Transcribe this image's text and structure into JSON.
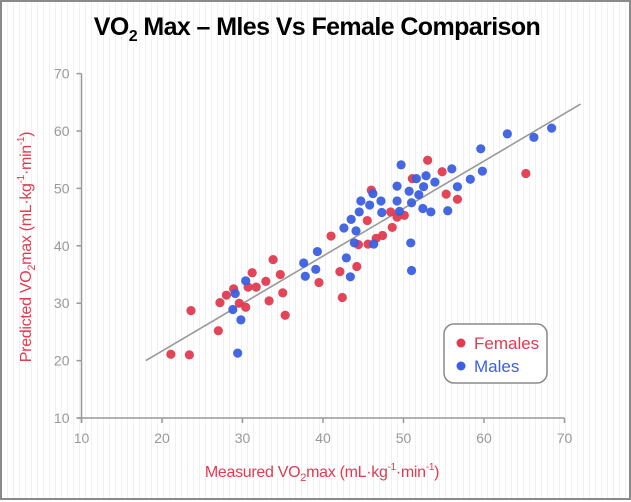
{
  "chart_data": {
    "type": "scatter",
    "title": {
      "prefix": "VO",
      "subscript": "2",
      "rest": " Max – Mles Vs Female Comparison"
    },
    "xlabel": {
      "prefix": "Measured VO",
      "subscript": "2",
      "middle": "max (mL·kg",
      "sup1": "-1",
      "middle2": "·min",
      "sup2": "-1",
      "suffix": ")"
    },
    "ylabel": {
      "prefix": "Predicted VO",
      "subscript": "2",
      "middle": "max (mL·kg",
      "sup1": "-1",
      "middle2": "·min",
      "sup2": "-1",
      "suffix": ")"
    },
    "xlim": [
      10,
      70
    ],
    "ylim": [
      10,
      70
    ],
    "xticks": [
      10,
      20,
      30,
      40,
      50,
      60,
      70
    ],
    "yticks": [
      10,
      20,
      30,
      40,
      50,
      60,
      70
    ],
    "grid": false,
    "legend": {
      "position": "bottom-right",
      "entries": [
        "Females",
        "Males"
      ]
    },
    "regression_line": {
      "x": [
        18,
        72
      ],
      "y": [
        20,
        64.7
      ]
    },
    "series": [
      {
        "name": "Females",
        "color": "#e23a4f",
        "points": [
          [
            21.1,
            21.1
          ],
          [
            23.4,
            21.0
          ],
          [
            23.6,
            28.7
          ],
          [
            27.0,
            25.2
          ],
          [
            27.2,
            30.1
          ],
          [
            28.0,
            31.4
          ],
          [
            28.9,
            32.5
          ],
          [
            29.6,
            30.0
          ],
          [
            30.4,
            29.3
          ],
          [
            30.7,
            32.8
          ],
          [
            31.7,
            32.8
          ],
          [
            31.2,
            35.3
          ],
          [
            32.9,
            33.8
          ],
          [
            33.8,
            37.6
          ],
          [
            34.7,
            35.0
          ],
          [
            33.3,
            30.4
          ],
          [
            35.0,
            31.8
          ],
          [
            35.3,
            27.9
          ],
          [
            39.5,
            33.6
          ],
          [
            41.0,
            41.7
          ],
          [
            42.1,
            35.5
          ],
          [
            42.4,
            31.0
          ],
          [
            44.2,
            36.4
          ],
          [
            44.4,
            40.2
          ],
          [
            45.6,
            40.3
          ],
          [
            46.6,
            41.3
          ],
          [
            47.4,
            41.8
          ],
          [
            45.5,
            44.4
          ],
          [
            46.0,
            49.7
          ],
          [
            48.4,
            45.9
          ],
          [
            48.6,
            43.2
          ],
          [
            49.2,
            45.0
          ],
          [
            50.1,
            45.3
          ],
          [
            51.1,
            51.7
          ],
          [
            53.0,
            54.9
          ],
          [
            54.8,
            52.9
          ],
          [
            55.3,
            49.0
          ],
          [
            56.7,
            48.1
          ],
          [
            65.2,
            52.6
          ]
        ]
      },
      {
        "name": "Males",
        "color": "#3b5fe0",
        "points": [
          [
            28.8,
            28.9
          ],
          [
            29.1,
            31.7
          ],
          [
            29.4,
            21.3
          ],
          [
            29.8,
            27.1
          ],
          [
            30.4,
            33.9
          ],
          [
            37.6,
            37.0
          ],
          [
            37.8,
            34.7
          ],
          [
            39.1,
            35.9
          ],
          [
            39.3,
            39.0
          ],
          [
            42.6,
            43.1
          ],
          [
            42.9,
            37.9
          ],
          [
            43.4,
            34.6
          ],
          [
            43.5,
            44.6
          ],
          [
            43.9,
            40.5
          ],
          [
            44.1,
            42.6
          ],
          [
            44.5,
            45.9
          ],
          [
            44.7,
            47.8
          ],
          [
            45.8,
            47.1
          ],
          [
            46.2,
            49.1
          ],
          [
            46.3,
            40.3
          ],
          [
            47.2,
            47.8
          ],
          [
            47.3,
            45.8
          ],
          [
            49.2,
            50.4
          ],
          [
            49.2,
            47.8
          ],
          [
            49.5,
            46.0
          ],
          [
            49.7,
            54.1
          ],
          [
            50.7,
            49.5
          ],
          [
            51.0,
            47.5
          ],
          [
            50.9,
            40.5
          ],
          [
            51.0,
            35.7
          ],
          [
            51.6,
            51.7
          ],
          [
            51.9,
            48.9
          ],
          [
            52.4,
            46.5
          ],
          [
            52.5,
            50.3
          ],
          [
            52.8,
            52.2
          ],
          [
            53.4,
            45.9
          ],
          [
            53.9,
            51.1
          ],
          [
            55.5,
            46.1
          ],
          [
            56.0,
            53.4
          ],
          [
            56.7,
            50.3
          ],
          [
            58.3,
            51.6
          ],
          [
            59.6,
            56.9
          ],
          [
            59.8,
            53.0
          ],
          [
            62.9,
            59.5
          ],
          [
            66.2,
            58.9
          ],
          [
            68.4,
            60.5
          ]
        ]
      }
    ]
  },
  "colors": {
    "axis": "#999999",
    "regression_line": "#999999",
    "axis_label": "#e23a4f",
    "legend_border": "#8a8a8a"
  }
}
